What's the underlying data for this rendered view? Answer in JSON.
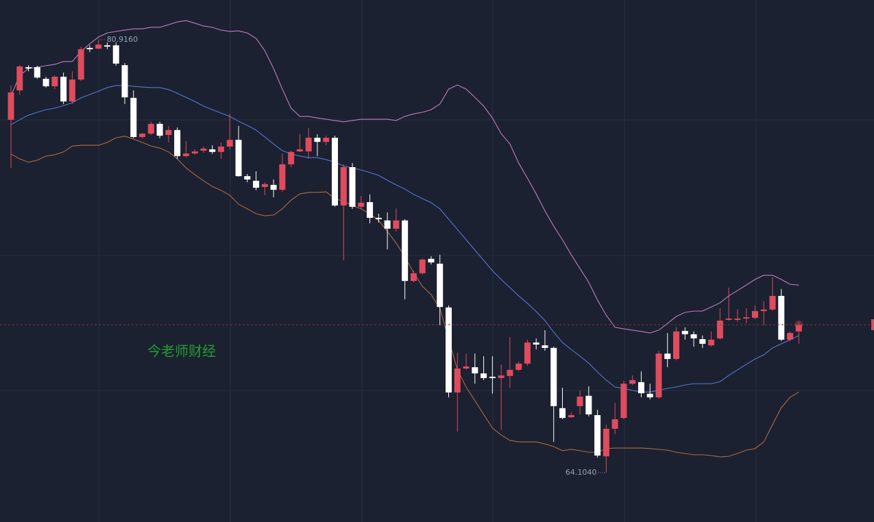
{
  "chart_data": {
    "type": "candlestick",
    "watermark": "今老师财经",
    "high_label": "80.9160",
    "low_label": "64.1040",
    "ylim": [
      62.19,
      82.46
    ],
    "up_color": "#e04b5e",
    "down_color": "#ffffff",
    "open": [
      77.81,
      78.95,
      79.85,
      79.85,
      79.4,
      79.11,
      79.48,
      78.52,
      79.37,
      80.6,
      80.57,
      80.7,
      80.7,
      79.93,
      78.66,
      77.14,
      77.27,
      77.65,
      77.22,
      77.41,
      76.4,
      76.5,
      76.61,
      76.66,
      76.56,
      76.77,
      77.03,
      75.62,
      75.44,
      75.2,
      75.28,
      75.09,
      76.08,
      76.58,
      76.58,
      77.11,
      76.95,
      77.11,
      74.48,
      75.97,
      74.43,
      74.61,
      74.0,
      73.9,
      73.58,
      73.9,
      71.55,
      71.85,
      72.41,
      72.22,
      70.52,
      67.22,
      68.15,
      68.2,
      67.96,
      67.83,
      67.78,
      67.86,
      68.1,
      68.34,
      69.16,
      69.05,
      68.95,
      66.61,
      66.26,
      66.69,
      67.09,
      66.34,
      64.74,
      65.81,
      66.23,
      67.56,
      67.62,
      67.17,
      67.03,
      68.73,
      68.52,
      69.61,
      69.48,
      69.29,
      69.05,
      69.32,
      70.04,
      70.04,
      70.09,
      70.12,
      70.38,
      70.44,
      70.97,
      69.27,
      69.59
    ],
    "high": [
      79.14,
      79.93,
      79.93,
      79.91,
      79.48,
      79.53,
      79.64,
      79.69,
      80.65,
      80.7,
      80.916,
      80.81,
      80.81,
      80.01,
      78.95,
      77.3,
      77.73,
      77.73,
      77.57,
      77.51,
      76.98,
      76.66,
      76.77,
      76.82,
      76.93,
      78.04,
      77.57,
      75.7,
      75.81,
      75.38,
      75.49,
      76.5,
      76.61,
      77.25,
      77.49,
      77.25,
      77.19,
      77.19,
      76.08,
      76.13,
      74.85,
      74.91,
      74.16,
      74.21,
      74.37,
      73.95,
      71.95,
      72.43,
      72.51,
      72.57,
      70.6,
      68.76,
      68.73,
      68.73,
      68.63,
      68.63,
      68.31,
      69.37,
      68.42,
      69.27,
      69.32,
      69.64,
      69.0,
      67.4,
      66.45,
      67.3,
      67.46,
      66.55,
      65.97,
      66.82,
      67.67,
      67.88,
      68.04,
      67.56,
      68.84,
      69.53,
      69.75,
      69.75,
      69.59,
      69.43,
      69.59,
      70.49,
      71.29,
      70.44,
      70.49,
      70.6,
      70.76,
      71.69,
      71.24,
      69.59,
      69.96
    ],
    "low": [
      75.94,
      78.79,
      79.69,
      79.4,
      79.06,
      79.0,
      78.42,
      78.42,
      79.32,
      80.44,
      80.55,
      80.55,
      79.91,
      78.42,
      77.09,
      77.09,
      77.22,
      77.09,
      76.93,
      76.29,
      76.34,
      76.45,
      76.53,
      76.48,
      76.29,
      76.66,
      75.6,
      75.38,
      75.07,
      74.88,
      74.8,
      75.01,
      75.97,
      76.56,
      76.29,
      76.4,
      76.82,
      74.43,
      72.35,
      74.35,
      74.35,
      73.79,
      73.82,
      72.78,
      73.47,
      70.84,
      71.5,
      71.79,
      72.19,
      69.83,
      67.03,
      65.7,
      68.1,
      67.56,
      67.7,
      67.17,
      65.76,
      67.4,
      68.04,
      68.26,
      68.89,
      68.84,
      65.3,
      66.18,
      66.23,
      66.37,
      66.29,
      64.69,
      64.104,
      65.6,
      66.18,
      67.51,
      67.03,
      66.95,
      66.98,
      68.2,
      68.47,
      69.27,
      69.0,
      68.95,
      69.0,
      69.27,
      70.01,
      69.96,
      69.91,
      70.06,
      69.83,
      70.38,
      69.21,
      69.21,
      69.11
    ],
    "close": [
      78.87,
      79.88,
      79.8,
      79.45,
      79.11,
      79.48,
      78.52,
      79.37,
      80.55,
      80.55,
      80.73,
      80.65,
      79.99,
      78.68,
      77.14,
      77.27,
      77.65,
      77.19,
      77.41,
      76.4,
      76.5,
      76.58,
      76.69,
      76.56,
      76.77,
      77.03,
      75.62,
      75.49,
      75.17,
      75.31,
      75.09,
      76.08,
      76.56,
      76.66,
      77.11,
      76.95,
      77.11,
      74.48,
      75.97,
      74.43,
      74.59,
      74.0,
      73.95,
      73.58,
      73.9,
      71.55,
      71.85,
      72.38,
      72.27,
      70.54,
      67.22,
      68.15,
      68.23,
      67.96,
      67.78,
      67.78,
      67.88,
      68.1,
      68.34,
      69.16,
      69.08,
      68.95,
      66.69,
      66.23,
      66.34,
      67.06,
      66.37,
      64.77,
      65.81,
      66.18,
      67.56,
      67.7,
      67.19,
      67.03,
      68.73,
      68.52,
      69.59,
      69.48,
      69.32,
      69.11,
      69.27,
      70.01,
      70.09,
      70.09,
      70.14,
      70.38,
      70.44,
      70.97,
      69.27,
      69.53,
      69.85
    ],
    "bands": [
      {
        "color": "#c57cc0",
        "values": [
          78.74,
          79.53,
          79.8,
          79.85,
          79.91,
          79.96,
          80.07,
          80.07,
          80.46,
          80.76,
          81.02,
          81.18,
          81.24,
          81.29,
          81.34,
          81.34,
          81.4,
          81.4,
          81.5,
          81.61,
          81.66,
          81.56,
          81.45,
          81.4,
          81.29,
          81.24,
          81.26,
          81.18,
          80.97,
          80.49,
          79.8,
          79.0,
          78.26,
          77.94,
          77.94,
          77.88,
          77.83,
          77.78,
          77.73,
          77.78,
          77.83,
          77.83,
          77.83,
          77.83,
          77.78,
          77.94,
          78.04,
          78.1,
          78.2,
          78.42,
          79.0,
          79.16,
          79.0,
          78.68,
          78.34,
          77.88,
          77.27,
          76.87,
          76.13,
          75.54,
          74.93,
          74.27,
          73.68,
          73.15,
          72.57,
          72.03,
          71.5,
          70.81,
          70.22,
          69.75,
          69.69,
          69.64,
          69.59,
          69.53,
          69.64,
          69.9,
          70.17,
          70.33,
          70.38,
          70.38,
          70.54,
          70.7,
          70.97,
          71.18,
          71.39,
          71.61,
          71.77,
          71.77,
          71.61,
          71.42,
          71.39
        ]
      },
      {
        "color": "#5a76d8",
        "values": [
          77.62,
          77.81,
          77.99,
          78.1,
          78.2,
          78.26,
          78.36,
          78.47,
          78.66,
          78.79,
          78.92,
          79.06,
          79.14,
          79.14,
          79.11,
          79.08,
          79.06,
          79.06,
          78.98,
          78.84,
          78.68,
          78.52,
          78.34,
          78.2,
          78.07,
          77.94,
          77.75,
          77.59,
          77.41,
          77.14,
          76.87,
          76.61,
          76.48,
          76.4,
          76.34,
          76.34,
          76.26,
          76.16,
          76.02,
          75.94,
          75.86,
          75.76,
          75.65,
          75.46,
          75.28,
          75.12,
          74.91,
          74.75,
          74.59,
          74.35,
          73.95,
          73.55,
          73.15,
          72.75,
          72.35,
          71.95,
          71.61,
          71.29,
          70.97,
          70.68,
          70.36,
          70.01,
          69.56,
          69.16,
          68.89,
          68.63,
          68.36,
          68.02,
          67.7,
          67.43,
          67.38,
          67.3,
          67.24,
          67.24,
          67.3,
          67.38,
          67.43,
          67.51,
          67.56,
          67.56,
          67.56,
          67.64,
          67.88,
          68.1,
          68.31,
          68.52,
          68.68,
          68.95,
          69.11,
          69.27,
          69.43
        ]
      },
      {
        "color": "#b26a40",
        "values": [
          76.48,
          76.29,
          76.16,
          76.24,
          76.4,
          76.45,
          76.56,
          76.79,
          76.82,
          76.82,
          76.82,
          76.93,
          77.11,
          77.17,
          77.06,
          76.93,
          76.79,
          76.71,
          76.56,
          76.29,
          75.94,
          75.68,
          75.44,
          75.22,
          75.07,
          74.88,
          74.53,
          74.35,
          74.16,
          74.08,
          74.11,
          74.35,
          74.69,
          74.93,
          74.99,
          74.99,
          75.01,
          74.75,
          74.64,
          74.48,
          74.35,
          74.16,
          73.9,
          73.47,
          73.02,
          72.49,
          71.87,
          71.34,
          71.02,
          70.49,
          69.29,
          68.1,
          67.43,
          66.9,
          66.37,
          65.84,
          65.57,
          65.36,
          65.3,
          65.3,
          65.3,
          65.22,
          65.12,
          64.96,
          65.01,
          64.96,
          64.9,
          64.9,
          65.04,
          65.06,
          65.06,
          65.06,
          65.06,
          65.04,
          65.01,
          64.98,
          64.9,
          64.85,
          64.8,
          64.8,
          64.77,
          64.72,
          64.74,
          64.85,
          64.98,
          65.04,
          65.3,
          65.97,
          66.63,
          67.03,
          67.24
        ]
      }
    ]
  }
}
